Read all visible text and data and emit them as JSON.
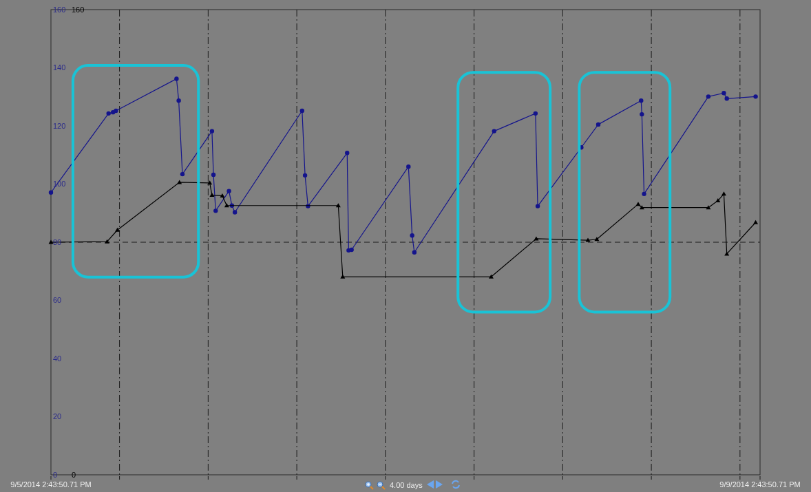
{
  "chart_data": {
    "type": "line",
    "xlabel": "4.00 days",
    "xlim": [
      "2014-09-05T14:43",
      "2014-09-09T14:43"
    ],
    "xticks": [
      {
        "value": "2014-09-05T14:43",
        "label": "9/5/2014 2:43:50.71 PM"
      },
      {
        "value": "2014-09-06T00:00",
        "label": null
      },
      {
        "value": "2014-09-06T12:00",
        "label": null
      },
      {
        "value": "2014-09-07T00:00",
        "label": null
      },
      {
        "value": "2014-09-07T12:00",
        "label": null
      },
      {
        "value": "2014-09-08T00:00",
        "label": null
      },
      {
        "value": "2014-09-08T12:00",
        "label": null
      },
      {
        "value": "2014-09-09T00:00",
        "label": null
      },
      {
        "value": "2014-09-09T12:00",
        "label": null
      },
      {
        "value": "2014-09-09T14:43",
        "label": "9/9/2014 2:43:50.71 PM"
      }
    ],
    "ylim": [
      0,
      160
    ],
    "yticks": [
      0,
      20,
      40,
      60,
      80,
      100,
      120,
      140,
      160
    ],
    "y2lim": [
      0,
      160
    ],
    "y2ticks": [
      0,
      160
    ],
    "grid": "x",
    "ref_lines": [
      {
        "axis": "y",
        "value": 80,
        "color": "#1a1a1a",
        "line_style": "dashed"
      }
    ],
    "series": [
      {
        "color": "#14148c",
        "marker": "circle",
        "x": [
          "2014-09-05T14:43",
          "2014-09-05T22:31",
          "2014-09-05T23:07",
          "2014-09-05T23:31",
          "2014-09-06T07:43",
          "2014-09-06T08:01",
          "2014-09-06T08:31",
          "2014-09-06T12:31",
          "2014-09-06T12:43",
          "2014-09-06T13:01",
          "2014-09-06T14:49",
          "2014-09-06T15:13",
          "2014-09-06T15:37",
          "2014-09-07T00:43",
          "2014-09-07T01:07",
          "2014-09-07T01:31",
          "2014-09-07T06:49",
          "2014-09-07T07:01",
          "2014-09-07T07:25",
          "2014-09-07T15:07",
          "2014-09-07T15:37",
          "2014-09-07T15:55",
          "2014-09-08T02:43",
          "2014-09-08T08:19",
          "2014-09-08T08:37",
          "2014-09-08T14:31",
          "2014-09-08T16:49",
          "2014-09-08T22:37",
          "2014-09-08T22:43",
          "2014-09-08T23:01",
          "2014-09-09T07:43",
          "2014-09-09T09:49",
          "2014-09-09T10:13",
          "2014-09-09T14:07"
        ],
        "values": [
          97.1,
          124.3,
          124.7,
          125.2,
          136.2,
          128.7,
          103.4,
          118.2,
          103.2,
          90.8,
          97.6,
          92.6,
          90.3,
          125.2,
          103,
          92.4,
          110.7,
          77.2,
          77.4,
          106,
          82.3,
          76.5,
          118.2,
          124.3,
          92.4,
          112.6,
          120.5,
          128.7,
          124,
          96.6,
          130.1,
          131.3,
          129.4,
          130.1
        ]
      },
      {
        "color": "#000000",
        "marker": "triangle",
        "x": [
          "2014-09-05T14:43",
          "2014-09-05T22:19",
          "2014-09-05T23:43",
          "2014-09-06T08:07",
          "2014-09-06T12:13",
          "2014-09-06T12:31",
          "2014-09-06T13:55",
          "2014-09-06T14:31",
          "2014-09-07T05:37",
          "2014-09-07T06:13",
          "2014-09-08T02:19",
          "2014-09-08T08:25",
          "2014-09-08T15:25",
          "2014-09-08T16:37",
          "2014-09-08T22:13",
          "2014-09-08T22:43",
          "2014-09-09T07:43",
          "2014-09-09T09:01",
          "2014-09-09T09:49",
          "2014-09-09T10:13",
          "2014-09-09T14:07"
        ],
        "values": [
          80,
          80.2,
          84.2,
          100.6,
          100.4,
          96.2,
          96,
          92.6,
          92.6,
          68.1,
          68.1,
          81.2,
          80.7,
          81,
          93.1,
          91.9,
          91.9,
          94.3,
          96.6,
          76,
          86.8
        ]
      }
    ]
  }
}
